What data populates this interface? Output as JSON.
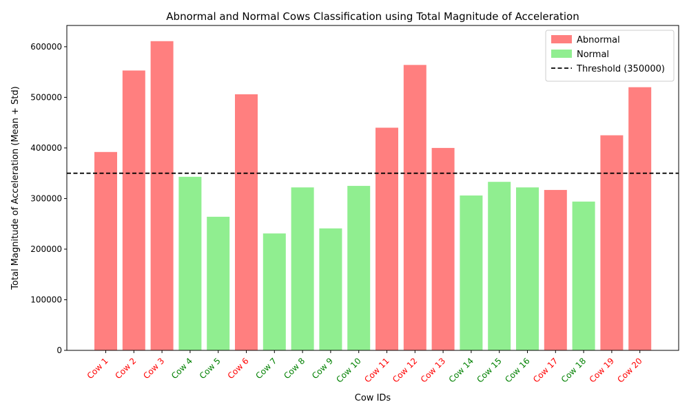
{
  "chart_data": {
    "type": "bar",
    "title": "Abnormal and Normal Cows Classification using Total Magnitude of Acceleration",
    "xlabel": "Cow IDs",
    "ylabel": "Total Magnitude of Acceleration (Mean + Std)",
    "ylim": [
      0,
      642000
    ],
    "yticks": [
      0,
      100000,
      200000,
      300000,
      400000,
      500000,
      600000
    ],
    "grid": false,
    "legend_position": "top-right",
    "categories": [
      "Cow 1",
      "Cow 2",
      "Cow 3",
      "Cow 4",
      "Cow 5",
      "Cow 6",
      "Cow 7",
      "Cow 8",
      "Cow 9",
      "Cow 10",
      "Cow 11",
      "Cow 12",
      "Cow 13",
      "Cow 14",
      "Cow 15",
      "Cow 16",
      "Cow 17",
      "Cow 18",
      "Cow 19",
      "Cow 20"
    ],
    "values": [
      392000,
      553000,
      611000,
      343000,
      264000,
      506000,
      231000,
      322000,
      241000,
      325000,
      440000,
      564000,
      400000,
      306000,
      333000,
      322000,
      317000,
      294000,
      425000,
      520000
    ],
    "classes": [
      "Abnormal",
      "Abnormal",
      "Abnormal",
      "Normal",
      "Normal",
      "Abnormal",
      "Normal",
      "Normal",
      "Normal",
      "Normal",
      "Abnormal",
      "Abnormal",
      "Abnormal",
      "Normal",
      "Normal",
      "Normal",
      "Abnormal",
      "Normal",
      "Abnormal",
      "Abnormal"
    ],
    "series": [
      {
        "name": "Abnormal",
        "color": "#ff7f7f",
        "label_color": "#ff0000"
      },
      {
        "name": "Normal",
        "color": "#90ee90",
        "label_color": "#008000"
      }
    ],
    "threshold": {
      "value": 350000,
      "label": "Threshold (350000)",
      "color": "#000000"
    }
  }
}
